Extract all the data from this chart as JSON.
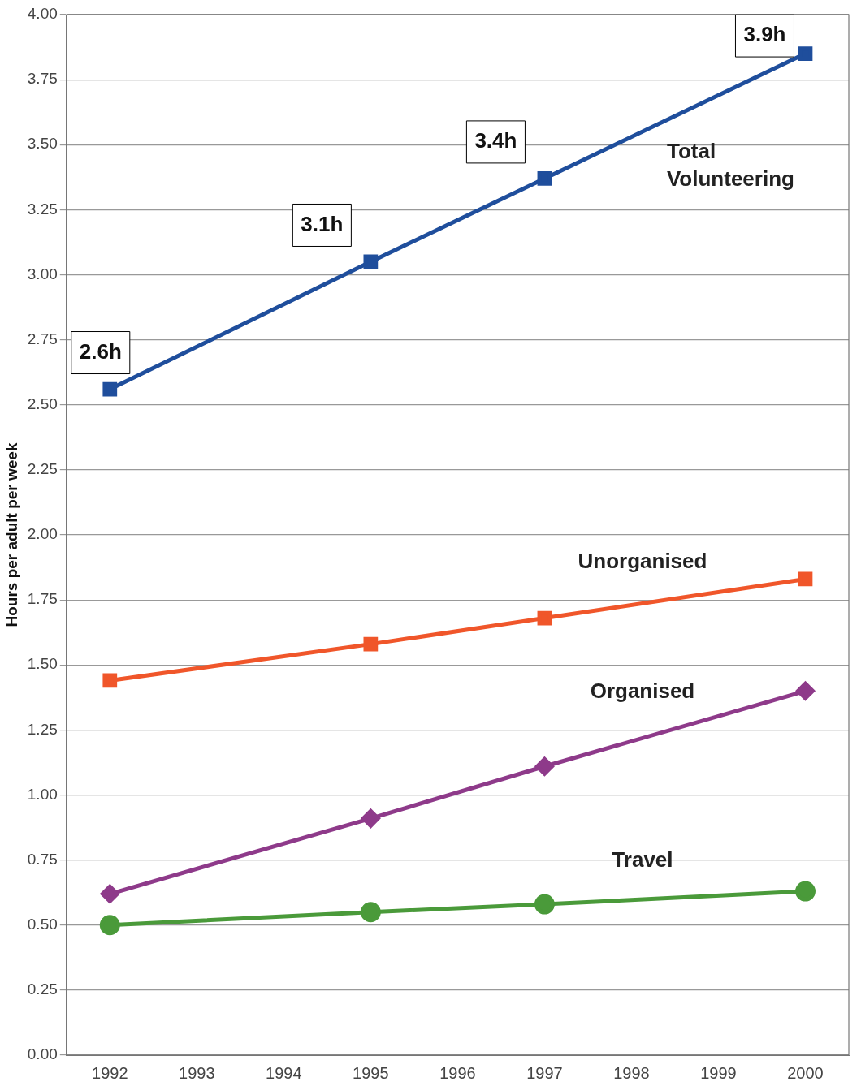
{
  "chart_data": {
    "type": "line",
    "ylabel": "Hours per adult per week",
    "categories": [
      "1992",
      "1993",
      "1994",
      "1995",
      "1996",
      "1997",
      "1998",
      "1999",
      "2000"
    ],
    "series": [
      {
        "name": "Total Volunteering",
        "color": "#1f4e9c",
        "marker": "square",
        "values": [
          2.56,
          null,
          null,
          3.05,
          null,
          3.37,
          null,
          null,
          3.85
        ],
        "value_labels": [
          "2.6h",
          null,
          null,
          "3.1h",
          null,
          "3.4h",
          null,
          null,
          "3.9h"
        ]
      },
      {
        "name": "Unorganised",
        "color": "#f0562a",
        "marker": "square",
        "values": [
          1.44,
          null,
          null,
          1.58,
          null,
          1.68,
          null,
          null,
          1.83
        ]
      },
      {
        "name": "Organised",
        "color": "#8e3a8a",
        "marker": "diamond",
        "values": [
          0.62,
          null,
          null,
          0.91,
          null,
          1.11,
          null,
          null,
          1.4
        ]
      },
      {
        "name": "Travel",
        "color": "#4a9a3a",
        "marker": "circle",
        "values": [
          0.5,
          null,
          null,
          0.55,
          null,
          0.58,
          null,
          null,
          0.63
        ]
      }
    ],
    "ylim": [
      0,
      4
    ],
    "yticks": [
      {
        "value": 0,
        "label": "0.00"
      },
      {
        "value": 0.25,
        "label": "0.25"
      },
      {
        "value": 0.5,
        "label": "0.50"
      },
      {
        "value": 0.75,
        "label": "0.75"
      },
      {
        "value": 1,
        "label": "1.00"
      },
      {
        "value": 1.25,
        "label": "1.25"
      },
      {
        "value": 1.5,
        "label": "1.50"
      },
      {
        "value": 1.75,
        "label": "1.75"
      },
      {
        "value": 2,
        "label": "2.00"
      },
      {
        "value": 2.25,
        "label": "2.25"
      },
      {
        "value": 2.5,
        "label": "2.50"
      },
      {
        "value": 2.75,
        "label": "2.75"
      },
      {
        "value": 3,
        "label": "3.00"
      },
      {
        "value": 3.25,
        "label": "3.25"
      },
      {
        "value": 3.5,
        "label": "3.50"
      },
      {
        "value": 3.75,
        "label": "3.75"
      },
      {
        "value": 4,
        "label": "4.00"
      }
    ],
    "grid": "y",
    "legend": false,
    "line_style": "solid"
  }
}
